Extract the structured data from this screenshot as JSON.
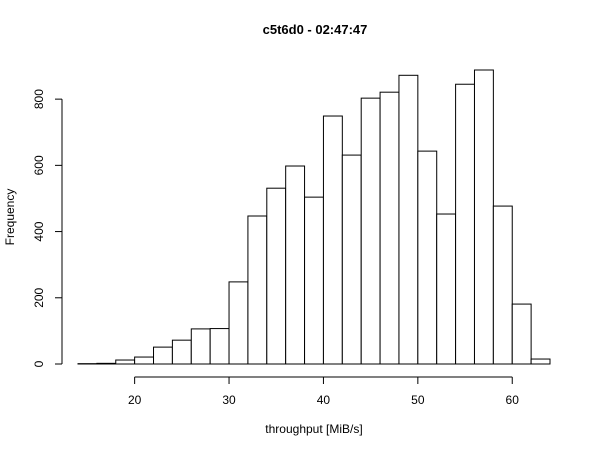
{
  "chart_data": {
    "type": "histogram",
    "title": "c5t6d0 - 02:47:47",
    "x_label": "throughput [MiB/s]",
    "y_label": "Frequency",
    "bins": [
      14,
      16,
      18,
      20,
      22,
      24,
      26,
      28,
      30,
      32,
      34,
      36,
      38,
      40,
      42,
      44,
      46,
      48,
      50,
      52,
      54,
      56,
      58,
      60,
      62,
      64
    ],
    "values": [
      1,
      2,
      12,
      21,
      51,
      72,
      106,
      107,
      248,
      447,
      531,
      598,
      504,
      749,
      631,
      803,
      821,
      872,
      643,
      453,
      845,
      888,
      477,
      181,
      15
    ],
    "color": "#ffffff",
    "xlim": [
      14,
      64
    ],
    "xticks": [
      20,
      30,
      40,
      50,
      60
    ],
    "ylim": [
      0,
      888
    ],
    "yticks": [
      0,
      200,
      400,
      600,
      800
    ]
  }
}
